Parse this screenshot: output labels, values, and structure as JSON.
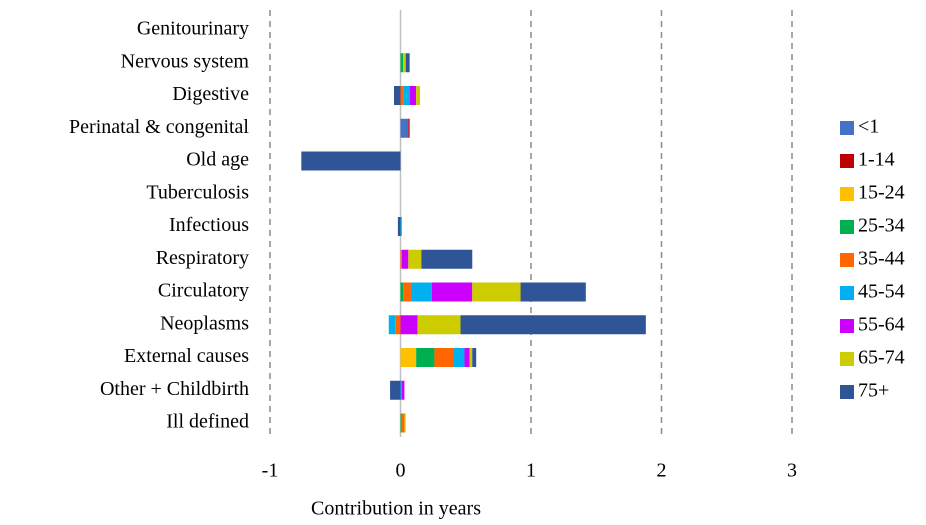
{
  "chart_data": {
    "type": "stacked-barh",
    "x_label": "Contribution in years",
    "categories": [
      "Genitourinary",
      "Nervous system",
      "Digestive",
      "Perinatal & congenital",
      "Old age",
      "Tuberculosis",
      "Infectious",
      "Respiratory",
      "Circulatory",
      "Neoplasms",
      "External causes",
      "Other + Childbirth",
      "Ill defined"
    ],
    "series": [
      {
        "name": "<1",
        "color": "#4472c4",
        "values": [
          0,
          0,
          0,
          0.06,
          0,
          0,
          0,
          0,
          0,
          0,
          0,
          0,
          0
        ]
      },
      {
        "name": "1-14",
        "color": "#c00000",
        "values": [
          0,
          0,
          0,
          0.01,
          0,
          0,
          0,
          0,
          0,
          0,
          0,
          0,
          0
        ]
      },
      {
        "name": "15-24",
        "color": "#ffc000",
        "values": [
          0,
          0,
          0,
          0,
          0,
          0,
          0,
          0,
          0,
          0,
          0.12,
          0,
          0
        ]
      },
      {
        "name": "25-34",
        "color": "#00b050",
        "values": [
          0,
          0.02,
          0,
          0,
          0,
          0,
          0,
          0,
          0.02,
          0,
          0.14,
          0,
          0.01
        ]
      },
      {
        "name": "35-44",
        "color": "#ff6600",
        "values": [
          0,
          0,
          0.02,
          0,
          0,
          0,
          0,
          0.01,
          0.06,
          -0.04,
          0.15,
          0,
          0.02
        ]
      },
      {
        "name": "45-54",
        "color": "#00b0f0",
        "values": [
          0,
          0,
          0.05,
          0,
          0,
          0,
          0.01,
          0,
          0.16,
          -0.05,
          0.08,
          0.01,
          0
        ]
      },
      {
        "name": "55-64",
        "color": "#cc00ff",
        "values": [
          0,
          0,
          0.05,
          0,
          0,
          0,
          0,
          0.05,
          0.31,
          0.13,
          0.04,
          0.02,
          0
        ]
      },
      {
        "name": "65-74",
        "color": "#cccc00",
        "values": [
          0,
          0.02,
          0.03,
          0,
          0,
          0,
          0,
          0.1,
          0.37,
          0.33,
          0.02,
          0,
          0.01
        ]
      },
      {
        "name": "75+",
        "color": "#2f5597",
        "values": [
          0,
          0.03,
          -0.05,
          0,
          -0.76,
          0,
          -0.02,
          0.39,
          0.5,
          1.42,
          0.03,
          -0.08,
          0
        ]
      }
    ],
    "xlim": [
      -1,
      3
    ],
    "xticks": [
      -1,
      0,
      1,
      2,
      3
    ],
    "grid": true,
    "legend": "right"
  }
}
